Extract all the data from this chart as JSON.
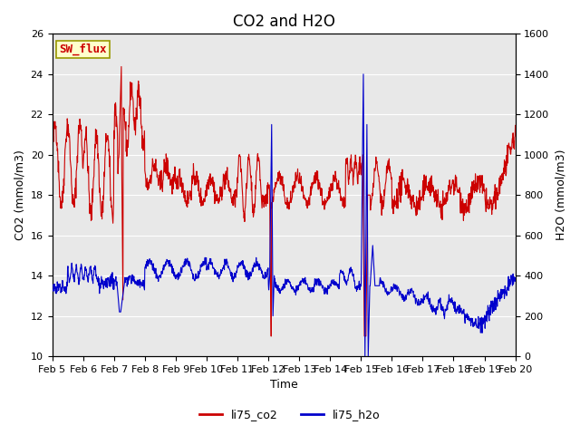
{
  "title": "CO2 and H2O",
  "xlabel": "Time",
  "ylabel_left": "CO2 (mmol/m3)",
  "ylabel_right": "H2O (mmol/m3)",
  "ylim_left": [
    10,
    26
  ],
  "ylim_right": [
    0,
    1600
  ],
  "yticks_left": [
    10,
    12,
    14,
    16,
    18,
    20,
    22,
    24,
    26
  ],
  "yticks_right": [
    0,
    200,
    400,
    600,
    800,
    1000,
    1200,
    1400,
    1600
  ],
  "xtick_labels": [
    "Feb 5",
    "Feb 6",
    "Feb 7",
    "Feb 8",
    "Feb 9",
    "Feb 10",
    "Feb 11",
    "Feb 12",
    "Feb 13",
    "Feb 14",
    "Feb 15",
    "Feb 16",
    "Feb 17",
    "Feb 18",
    "Feb 19",
    "Feb 20"
  ],
  "co2_color": "#cc0000",
  "h2o_color": "#0000cc",
  "fig_bg_color": "#ffffff",
  "plot_bg_color": "#e8e8e8",
  "grid_color": "#ffffff",
  "legend_label_co2": "li75_co2",
  "legend_label_h2o": "li75_h2o",
  "sw_flux_label": "SW_flux",
  "sw_flux_bg": "#ffffcc",
  "sw_flux_border": "#999900",
  "sw_flux_text_color": "#cc0000",
  "title_fontsize": 12,
  "axis_label_fontsize": 9,
  "tick_fontsize": 8,
  "legend_fontsize": 9,
  "linewidth": 0.8
}
